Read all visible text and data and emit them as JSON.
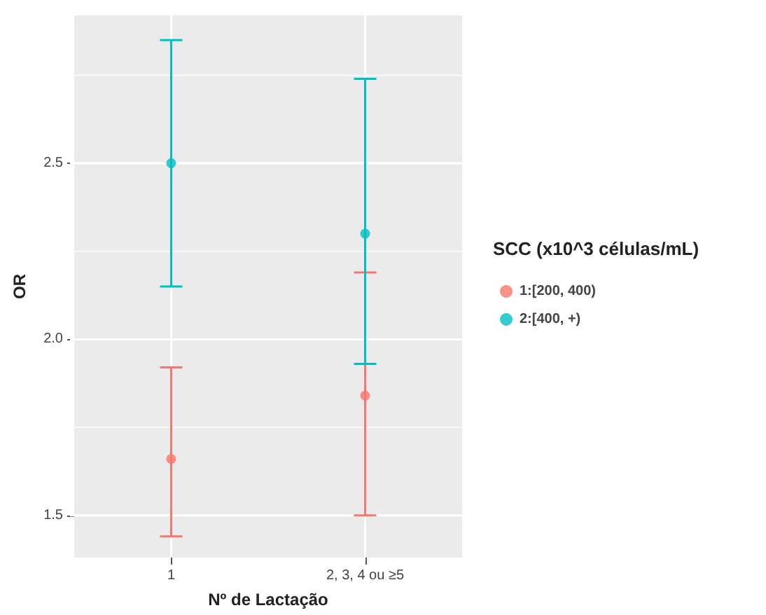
{
  "chart_data": {
    "type": "scatter",
    "xlabel": "Nº de Lactação",
    "ylabel": "OR",
    "legend_title": "SCC (x10^3 células/mL)",
    "legend": "right",
    "grid": true,
    "marker": "circle",
    "categories": [
      "1",
      "2, 3, 4 ou ≥5"
    ],
    "ylim": [
      1.38,
      2.92
    ],
    "yticks": [
      1.5,
      {
        "value": 1.75,
        "label": null
      },
      {
        "value": 2,
        "label": "2.0"
      },
      {
        "value": 2.25,
        "label": null
      },
      2.5,
      {
        "value": 2.75,
        "label": null
      }
    ],
    "series": [
      {
        "name": "1:[200, 400)",
        "color": "#f8766d",
        "values": [
          1.66,
          1.84
        ],
        "errors": [
          [
            1.44,
            1.92
          ],
          [
            1.5,
            2.19
          ]
        ]
      },
      {
        "name": "2:[400, +)",
        "color": "#00bfc4",
        "values": [
          2.5,
          2.3
        ],
        "errors": [
          [
            2.15,
            2.85
          ],
          [
            1.93,
            2.74
          ]
        ]
      }
    ]
  }
}
